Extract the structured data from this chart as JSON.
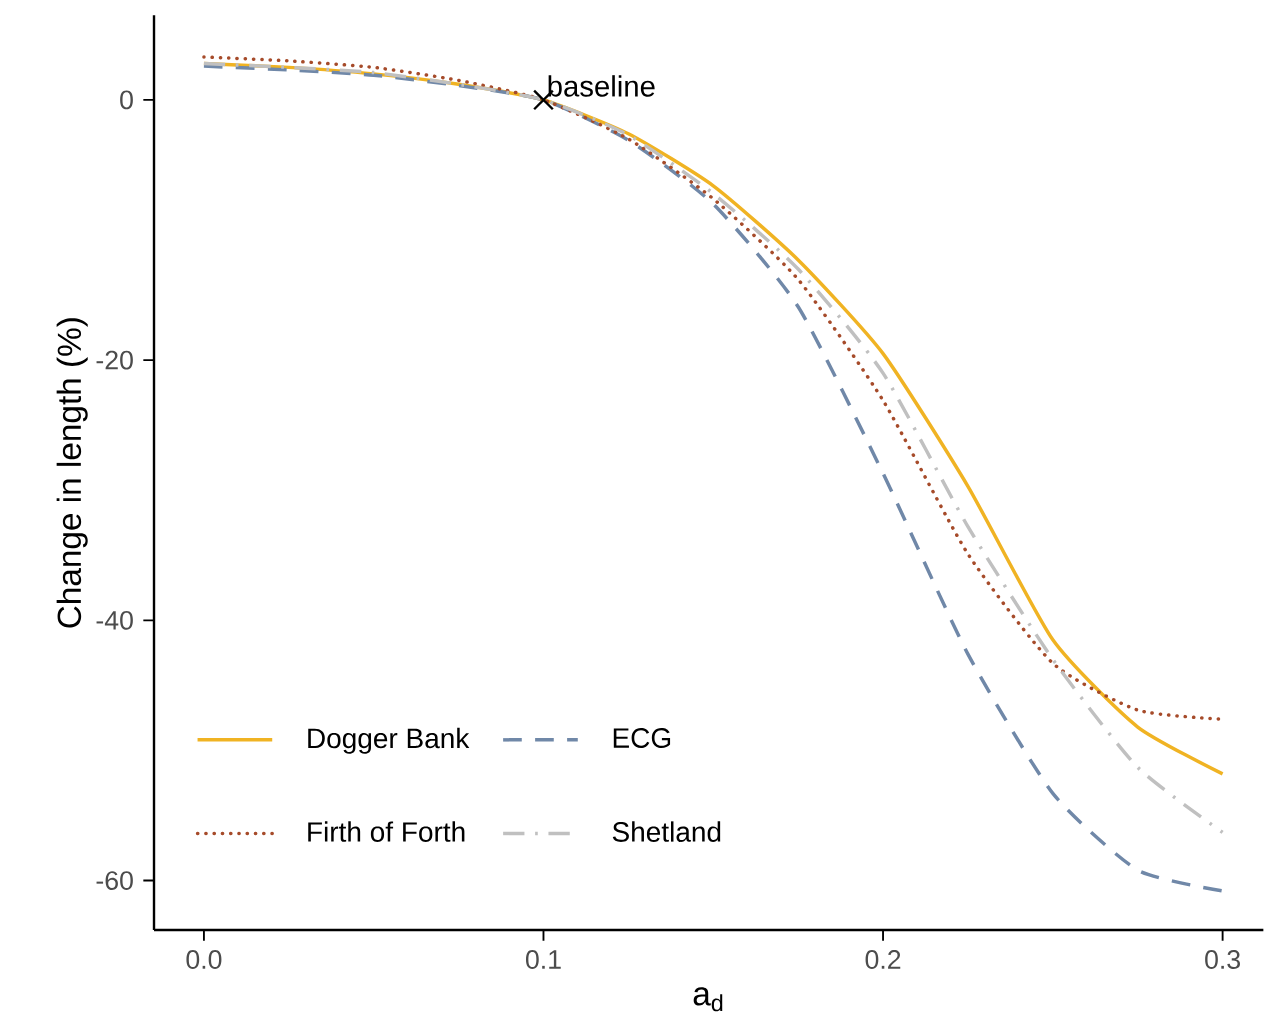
{
  "chart_data": {
    "type": "line",
    "xlabel": "a$_{d}$",
    "ylabel": "Change in length (%)",
    "x": [
      0,
      0.025,
      0.05,
      0.075,
      0.1,
      0.125,
      0.15,
      0.175,
      0.2,
      0.225,
      0.25,
      0.275,
      0.3
    ],
    "xlim": [
      -0.0147,
      0.312
    ],
    "ylim": [
      -63.8,
      6.5
    ],
    "xticks": [
      {
        "value": 0,
        "label": "0.0"
      },
      0.1,
      0.2,
      0.3
    ],
    "yticks": [
      -60,
      -40,
      -20,
      0
    ],
    "grid": false,
    "legend": "bottom left",
    "marker": "none",
    "annotations": [
      {
        "text": "baseline",
        "x": 0.1,
        "y": 0
      }
    ],
    "series": [
      {
        "name": "Dogger Bank",
        "color": "#f0b323",
        "line_style": "solid",
        "values": [
          2.8,
          2.5,
          2.0,
          1.2,
          0,
          -2.6,
          -6.6,
          -12.3,
          -19.5,
          -29.7,
          -41.5,
          -48.2,
          -51.8
        ]
      },
      {
        "name": "ECG",
        "color": "#7088a8",
        "line_style": "dashed",
        "values": [
          2.6,
          2.3,
          1.9,
          1.1,
          0,
          -3.1,
          -8,
          -15.9,
          -28.7,
          -42.6,
          -53.3,
          -59.2,
          -60.8
        ]
      },
      {
        "name": "Firth of Forth",
        "color": "#a64b2a",
        "line_style": "dotted",
        "values": [
          3.3,
          3.0,
          2.5,
          1.5,
          0,
          -3,
          -7.6,
          -13.8,
          -23.1,
          -34.9,
          -43.3,
          -46.9,
          -47.6
        ]
      },
      {
        "name": "Shetland",
        "color": "#c0c0c0",
        "line_style": "dashdot",
        "values": [
          2.8,
          2.5,
          2.1,
          1.2,
          0,
          -2.7,
          -7.2,
          -13,
          -21,
          -32.8,
          -43,
          -51.3,
          -56.3
        ]
      }
    ]
  }
}
